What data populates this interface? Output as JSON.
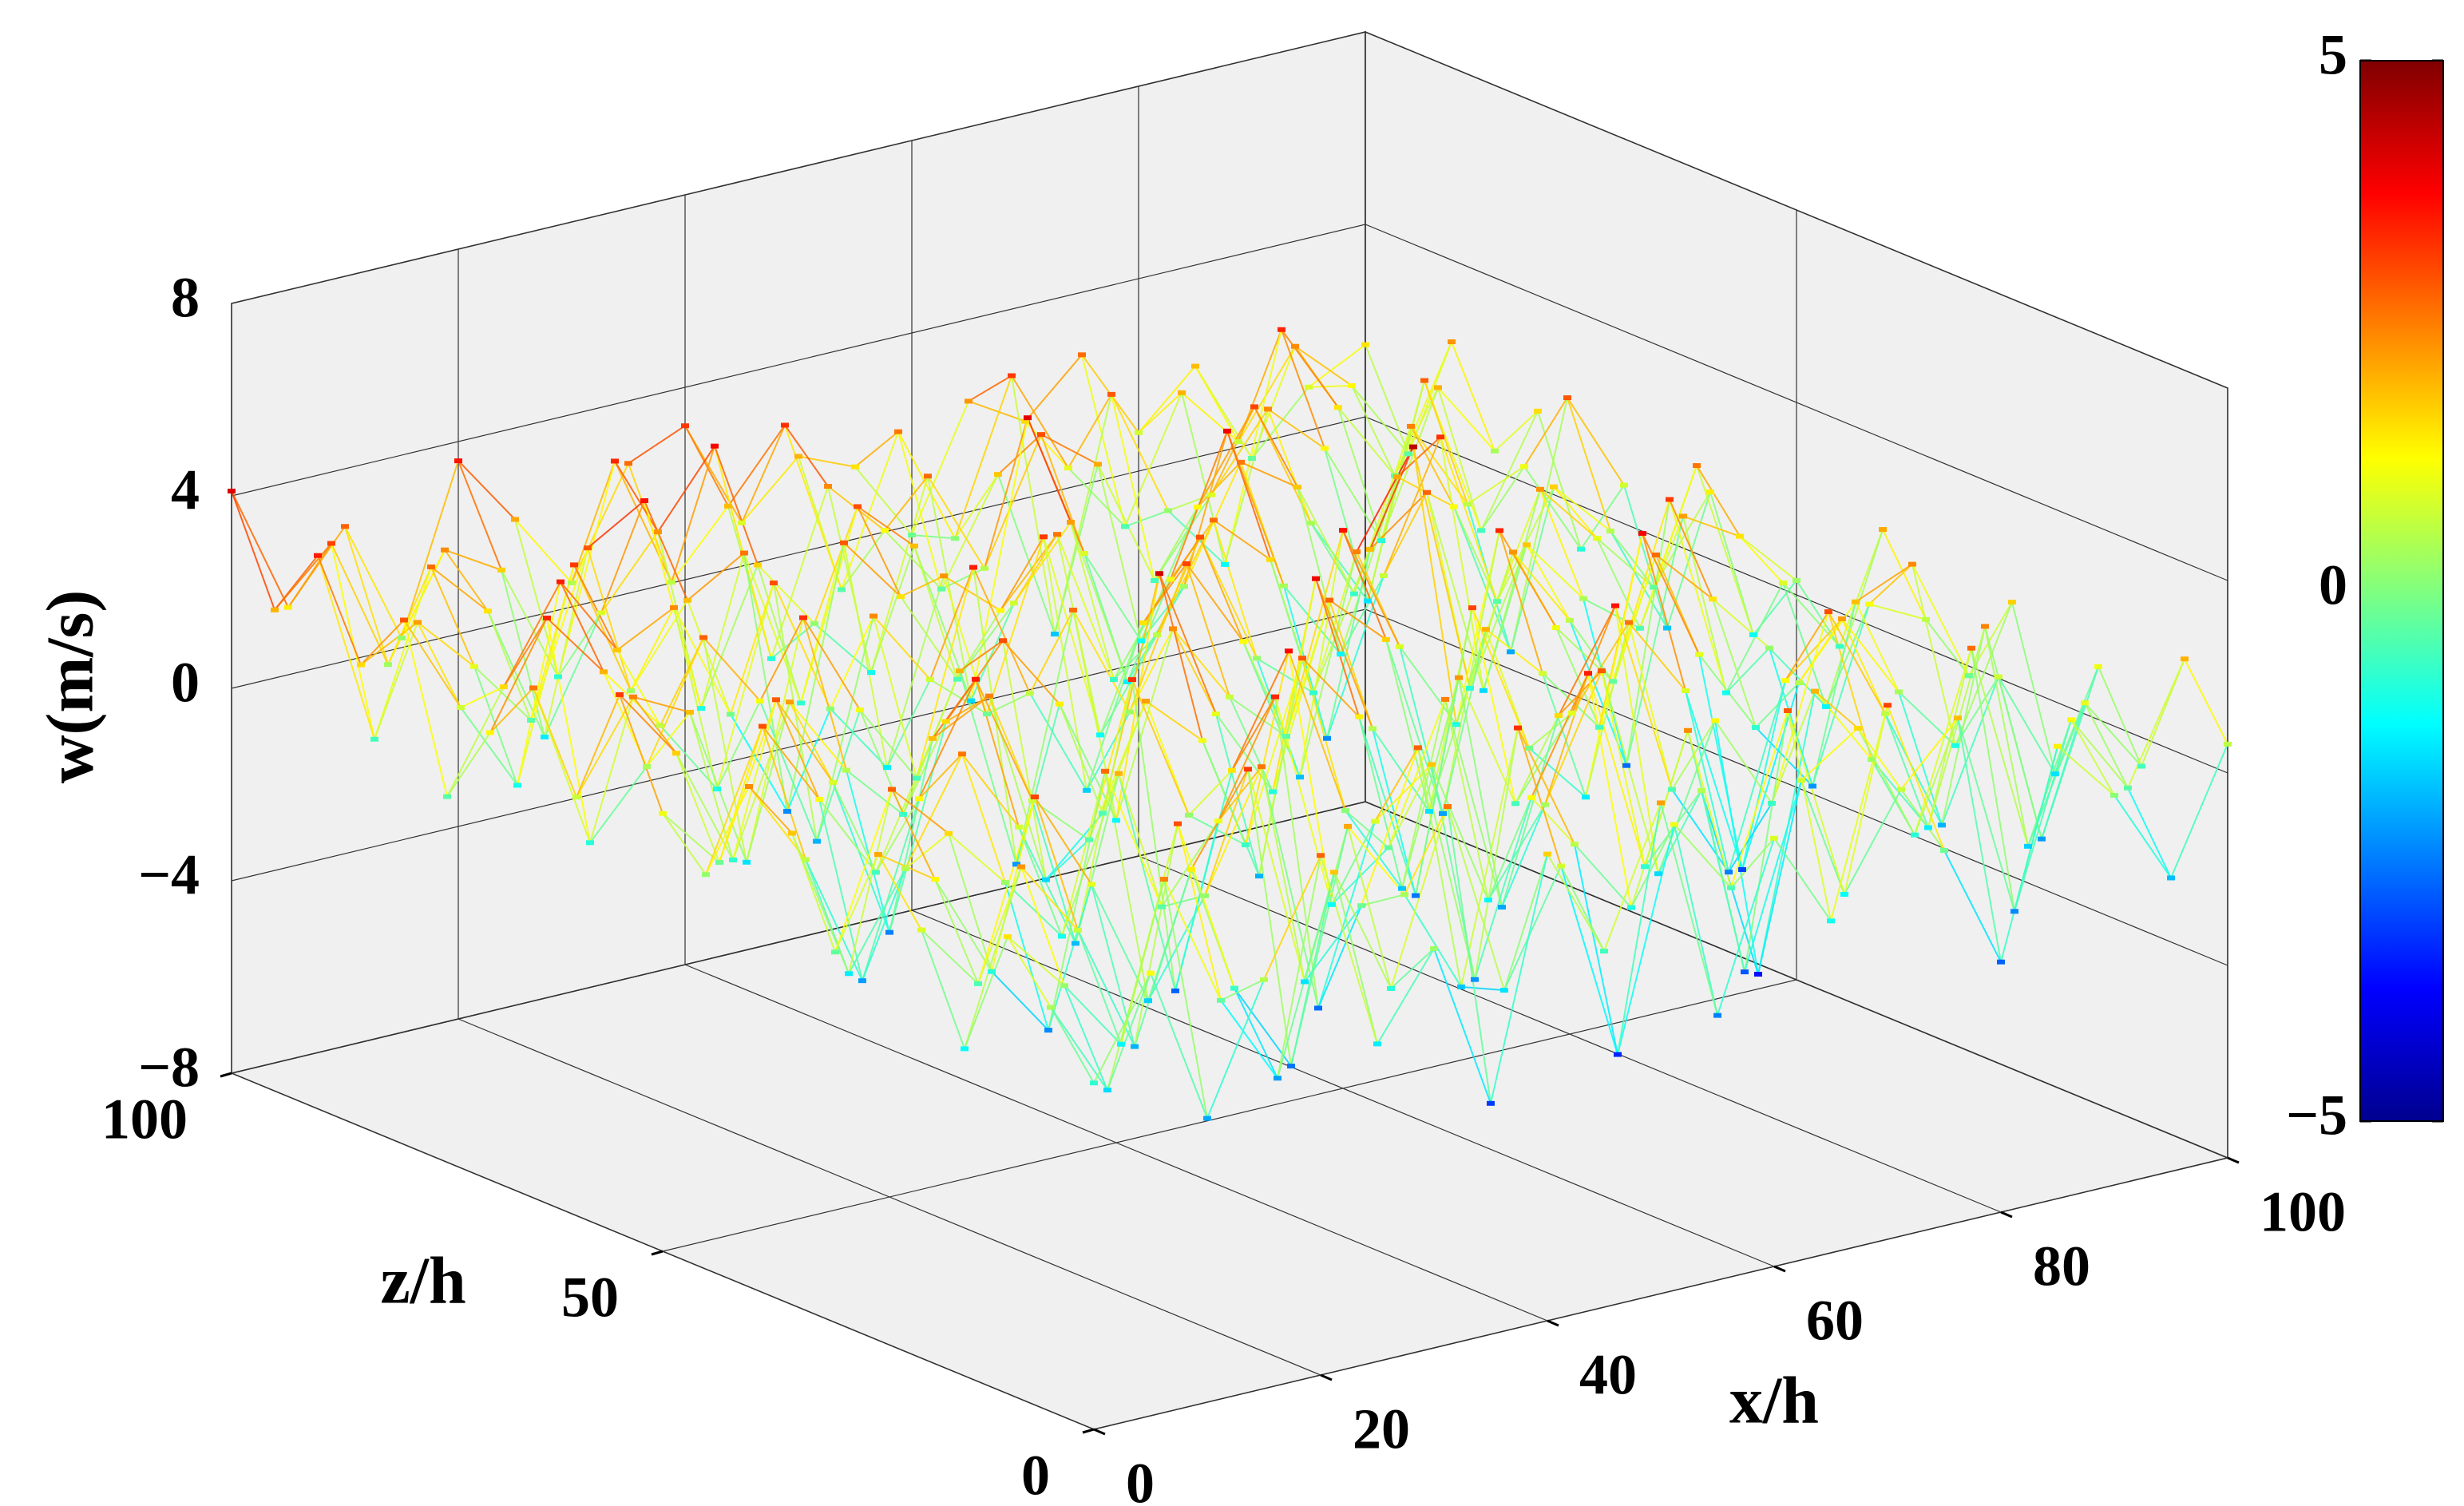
{
  "chart_data": {
    "type": "surface3d",
    "xlabel": "x/h",
    "zlabel": "z/h",
    "ylabel": "w(m/s)",
    "x": [
      0,
      5,
      10,
      15,
      20,
      25,
      30,
      35,
      40,
      45,
      50,
      55,
      60,
      65,
      70,
      75,
      80,
      85,
      90,
      95,
      100
    ],
    "z": [
      0,
      5,
      10,
      15,
      20,
      25,
      30,
      35,
      40,
      45,
      50,
      55,
      60,
      65,
      70,
      75,
      80,
      85,
      90,
      95,
      100
    ],
    "values": [
      [
        -0.8,
        1.2,
        -2.1,
        0.5,
        2.8,
        -1.4,
        0.3,
        -3.2,
        1.7,
        -0.6,
        2.2,
        -2.5,
        0.9,
        -1.1,
        3.1,
        -0.2,
        -2.8,
        1.4,
        0.1,
        -1.9,
        0.6
      ],
      [
        0.4,
        -1.6,
        2.5,
        -0.3,
        -2.2,
        1.8,
        -0.9,
        2.6,
        -1.5,
        0.8,
        -3.4,
        1.1,
        -0.5,
        2.9,
        -1.2,
        0.7,
        1.9,
        -2.4,
        1.3,
        -0.4,
        2.0
      ],
      [
        1.5,
        0.2,
        -1.3,
        3.0,
        -0.7,
        -2.6,
        2.1,
        0.4,
        -1.8,
        3.3,
        0.6,
        -1.0,
        2.4,
        -2.9,
        0.8,
        1.6,
        -0.9,
        2.7,
        -1.7,
        1.0,
        -0.6
      ],
      [
        -1.2,
        2.3,
        0.7,
        -2.0,
        1.4,
        3.2,
        -1.5,
        -0.2,
        2.8,
        -2.3,
        1.2,
        3.5,
        -0.8,
        0.5,
        -3.6,
        2.0,
        0.3,
        -1.4,
        2.5,
        -2.2,
        1.1
      ],
      [
        0.9,
        -0.5,
        3.1,
        1.0,
        -1.7,
        0.2,
        2.6,
        -2.7,
        0.9,
        1.8,
        -1.3,
        0.4,
        2.9,
        -1.6,
        1.3,
        -0.7,
        3.0,
        0.6,
        -2.0,
        0.8,
        -1.5
      ],
      [
        2.1,
        1.3,
        -0.9,
        -2.4,
        2.7,
        -0.4,
        1.1,
        3.4,
        -1.2,
        -0.3,
        2.5,
        -2.1,
        1.6,
        3.6,
        -0.5,
        -2.5,
        1.2,
        2.2,
        0.4,
        -1.0,
        1.7
      ],
      [
        -0.3,
        2.8,
        1.6,
        0.3,
        -1.1,
        2.0,
        -2.8,
        1.5,
        3.7,
        0.1,
        -1.8,
        2.3,
        -0.6,
        1.0,
        2.6,
        0.9,
        -3.1,
        0.5,
        1.9,
        2.4,
        -0.2
      ],
      [
        1.8,
        -1.4,
        0.5,
        2.6,
        0.8,
        -1.9,
        3.3,
        0.2,
        -0.7,
        2.9,
        1.4,
        -2.6,
        3.1,
        -0.1,
        -1.4,
        3.8,
        1.0,
        -0.8,
        -2.3,
        1.2,
        0.6
      ],
      [
        2.4,
        0.6,
        -2.2,
        1.3,
        3.5,
        0.7,
        -0.4,
        2.2,
        1.1,
        -2.0,
        3.9,
        0.5,
        -1.5,
        2.0,
        0.8,
        -0.6,
        2.7,
        1.5,
        0.2,
        -1.3,
        2.1
      ],
      [
        0.2,
        3.0,
        1.2,
        -0.6,
        1.9,
        2.5,
        -1.6,
        -0.5,
        4.2,
        1.0,
        -0.9,
        2.8,
        1.7,
        -2.2,
        3.4,
        1.1,
        -0.3,
        3.2,
        -1.1,
        0.9,
        -0.7
      ],
      [
        1.1,
        -0.2,
        2.9,
        0.9,
        -2.5,
        1.6,
        3.0,
        1.4,
        -1.3,
        2.4,
        0.7,
        -0.4,
        3.6,
        0.9,
        -1.0,
        2.3,
        0.6,
        -2.7,
        2.2,
        1.5,
        0.3
      ],
      [
        3.2,
        1.7,
        -0.8,
        2.2,
        0.5,
        -0.7,
        2.0,
        -2.3,
        2.7,
        0.3,
        3.1,
        1.2,
        -1.9,
        2.5,
        4.4,
        -0.9,
        1.8,
        0.4,
        -0.5,
        2.6,
        -1.2
      ],
      [
        0.7,
        2.5,
        1.9,
        -1.5,
        3.3,
        1.1,
        -0.6,
        3.5,
        0.6,
        -1.7,
        1.5,
        3.0,
        0.2,
        -0.8,
        1.9,
        2.8,
        -1.6,
        2.3,
        1.0,
        -0.3,
        1.4
      ],
      [
        2.6,
        -0.9,
        0.4,
        2.8,
        1.2,
        -2.0,
        2.4,
        0.8,
        -0.2,
        3.2,
        -1.2,
        0.6,
        2.7,
        1.6,
        -2.4,
        0.7,
        3.3,
        -0.4,
        1.7,
        0.5,
        -1.8
      ],
      [
        1.3,
        3.4,
        2.0,
        0.6,
        -1.0,
        3.0,
        0.1,
        -1.4,
        2.3,
        1.3,
        2.6,
        -0.7,
        1.1,
        3.9,
        0.4,
        -1.3,
        2.1,
        1.2,
        -2.1,
        2.9,
        0.8
      ],
      [
        -0.4,
        1.6,
        3.5,
        1.8,
        2.4,
        -0.1,
        -2.4,
        2.9,
        1.5,
        -0.5,
        0.8,
        2.2,
        -1.4,
        0.3,
        2.6,
        1.8,
        -0.7,
        2.5,
        0.6,
        1.1,
        -0.9
      ],
      [
        2.9,
        0.8,
        -1.1,
        3.2,
        0.3,
        1.9,
        2.6,
        -0.8,
        3.0,
        1.9,
        -1.6,
        4.0,
        0.9,
        -1.2,
        1.3,
        3.1,
        0.4,
        -1.5,
        2.8,
        -0.6,
        1.6
      ],
      [
        1.6,
        2.2,
        1.0,
        -0.4,
        2.9,
        3.6,
        -1.0,
        1.7,
        0.2,
        -1.1,
        2.7,
        0.5,
        3.0,
        2.1,
        -0.6,
        0.9,
        2.4,
        1.3,
        -0.9,
        2.0,
        0.4
      ],
      [
        3.5,
        -0.6,
        2.7,
        1.5,
        -1.4,
        0.9,
        2.3,
        3.8,
        -0.9,
        2.4,
        1.2,
        -0.3,
        1.8,
        -1.8,
        2.9,
        0.2,
        -1.2,
        3.4,
        1.5,
        -0.2,
        2.3
      ],
      [
        2.0,
        3.1,
        0.3,
        2.4,
        1.7,
        -0.8,
        3.4,
        0.6,
        1.9,
        3.3,
        -0.4,
        2.6,
        0.1,
        3.2,
        1.0,
        -0.5,
        2.0,
        0.7,
        2.4,
        1.3,
        -0.4
      ],
      [
        4.1,
        1.4,
        2.8,
        0.2,
        3.6,
        2.1,
        0.5,
        2.7,
        3.2,
        0.9,
        2.0,
        1.5,
        -0.2,
        2.3,
        1.6,
        2.7,
        0.8,
        1.9,
        -0.3,
        0.9,
        1.5
      ]
    ],
    "xlim": [
      0,
      100
    ],
    "xticks": [
      0,
      20,
      40,
      60,
      80,
      100
    ],
    "zlim": [
      0,
      100
    ],
    "zticks": [
      0,
      50,
      100
    ],
    "ylim": [
      -8,
      8
    ],
    "yticks": [
      {
        "value": -8,
        "label": "−8"
      },
      {
        "value": -4,
        "label": "−4"
      },
      0,
      4,
      8
    ],
    "colormap": "jet",
    "clim": [
      -5,
      5
    ],
    "cticks": [
      {
        "value": -5,
        "label": "−5"
      },
      0,
      5
    ],
    "grid": true
  }
}
